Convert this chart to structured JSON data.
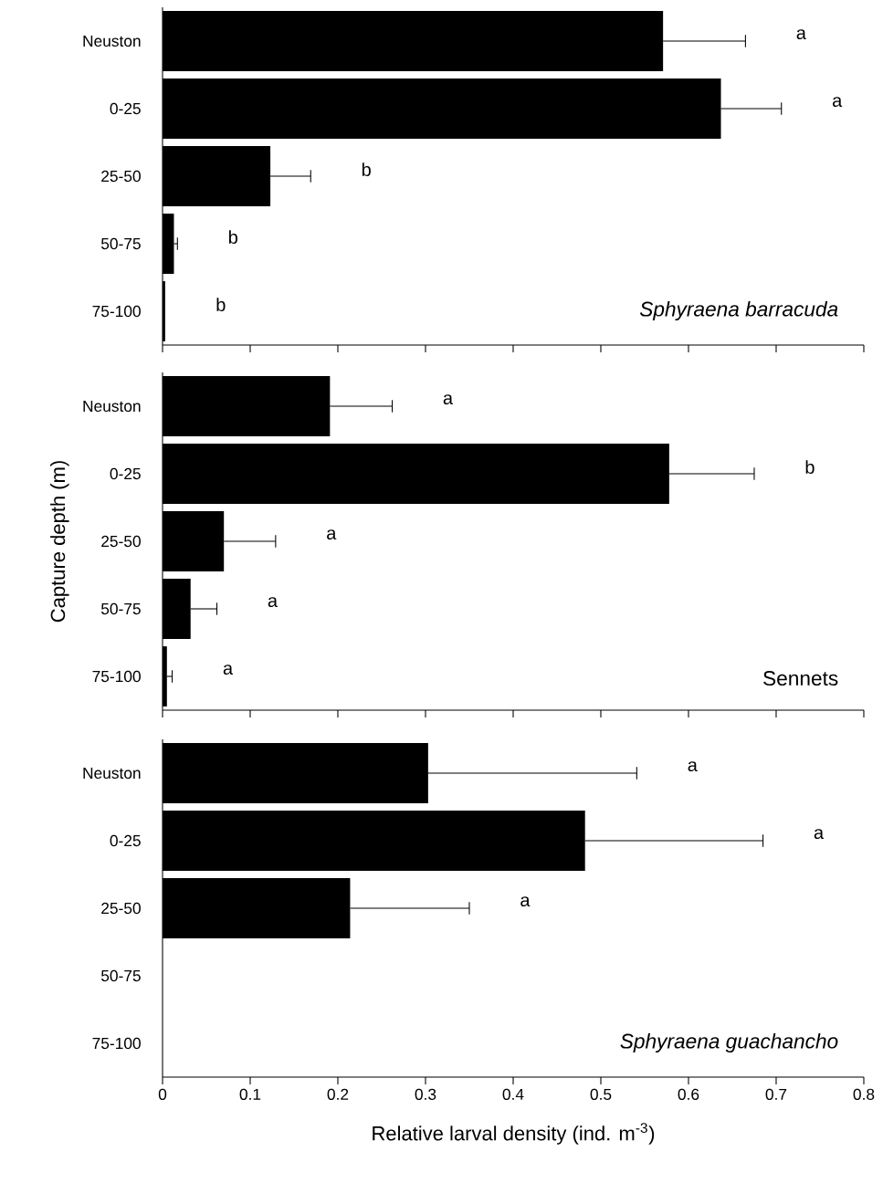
{
  "chart_data": [
    {
      "type": "bar",
      "orientation": "horizontal",
      "title": "*Sphyraena barracuda*",
      "categories": [
        "Neuston",
        "0-25",
        "25-50",
        "50-75",
        "75-100"
      ],
      "values": [
        0.571,
        0.637,
        0.123,
        0.013,
        0.003
      ],
      "errors": [
        [
          0.571,
          0.665
        ],
        [
          0.637,
          0.706
        ],
        [
          0.123,
          0.169
        ],
        [
          0.013,
          0.017
        ],
        null
      ],
      "color": "#000000",
      "xlim": [
        0,
        0.8
      ],
      "xticks": [
        0,
        0.1,
        0.2,
        0.3,
        0.4,
        0.5,
        0.6,
        0.7,
        0.8
      ],
      "tick_labels": "y",
      "annotations": [
        "a",
        "a",
        "b",
        "b",
        "b"
      ]
    },
    {
      "type": "bar",
      "orientation": "horizontal",
      "title": "Sennets",
      "ylabel": "Capture depth (m)",
      "categories": [
        "Neuston",
        "0-25",
        "25-50",
        "50-75",
        "75-100"
      ],
      "values": [
        0.191,
        0.578,
        0.07,
        0.032,
        0.005
      ],
      "errors": [
        [
          0.191,
          0.262
        ],
        [
          0.578,
          0.675
        ],
        [
          0.07,
          0.129
        ],
        [
          0.032,
          0.062
        ],
        [
          0.005,
          0.011
        ]
      ],
      "color": "#000000",
      "xlim": [
        0,
        0.8
      ],
      "xticks": [
        0,
        0.1,
        0.2,
        0.3,
        0.4,
        0.5,
        0.6,
        0.7,
        0.8
      ],
      "tick_labels": "y",
      "annotations": [
        "a",
        "b",
        "a",
        "a",
        "a"
      ]
    },
    {
      "type": "bar",
      "orientation": "horizontal",
      "title": "*Sphyraena guachancho*",
      "xlabel": "Relative larval density (ind. m$^{-3}$)",
      "categories": [
        "Neuston",
        "0-25",
        "25-50",
        "50-75",
        "75-100"
      ],
      "values": [
        0.303,
        0.482,
        0.214,
        0,
        0
      ],
      "errors": [
        [
          0.303,
          0.541
        ],
        [
          0.482,
          0.685
        ],
        [
          0.214,
          0.35
        ],
        null,
        null
      ],
      "color": "#000000",
      "xlim": [
        0,
        0.8
      ],
      "xticks": [
        0,
        0.1,
        0.2,
        0.3,
        0.4,
        0.5,
        0.6,
        0.7,
        0.8
      ],
      "annotations": [
        "a",
        "a",
        "a"
      ]
    }
  ]
}
